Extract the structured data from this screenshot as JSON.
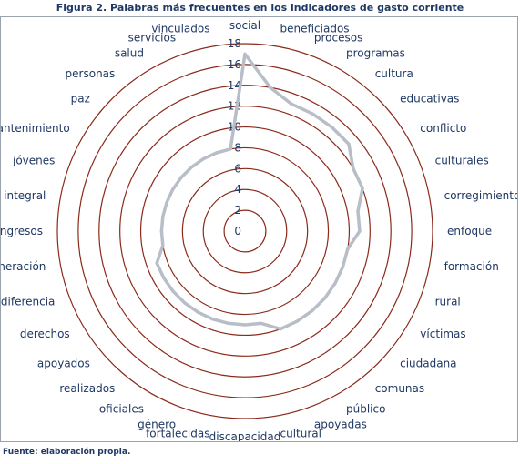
{
  "figure": {
    "title": "Figura 2. Palabras más frecuentes en los indicadores de gasto corriente",
    "source": "Fuente: elaboración propia."
  },
  "colors": {
    "ring": "#8b2a1a",
    "series": "#b8bec8",
    "text": "#1f3864"
  },
  "chart_data": {
    "type": "radar",
    "title": "Figura 2. Palabras más frecuentes en los indicadores de gasto corriente",
    "rlim": [
      0,
      18
    ],
    "ticks": [
      0,
      2,
      4,
      6,
      8,
      10,
      12,
      14,
      16,
      18
    ],
    "grid": true,
    "categories": [
      "social",
      "beneficiados",
      "procesos",
      "programas",
      "cultura",
      "educativas",
      "conflicto",
      "culturales",
      "corregimientos",
      "enfoque",
      "formación",
      "rural",
      "víctimas",
      "ciudadana",
      "comunas",
      "público",
      "apoyadas",
      "cultural",
      "discapacidad",
      "fortalecidas",
      "género",
      "oficiales",
      "realizados",
      "apoyados",
      "derechos",
      "diferencia",
      "generación",
      "ingresos",
      "integral",
      "jóvenes",
      "mantenimiento",
      "paz",
      "personas",
      "salud",
      "servicios",
      "vinculados"
    ],
    "series": [
      {
        "values": [
          17,
          14,
          13,
          13,
          13,
          13,
          12,
          12,
          11,
          11,
          10,
          10,
          10,
          10,
          10,
          10,
          10,
          9,
          9,
          9,
          9,
          9,
          9,
          9,
          9,
          9,
          8,
          8,
          8,
          8,
          8,
          8,
          8,
          8,
          8,
          8
        ]
      }
    ]
  }
}
